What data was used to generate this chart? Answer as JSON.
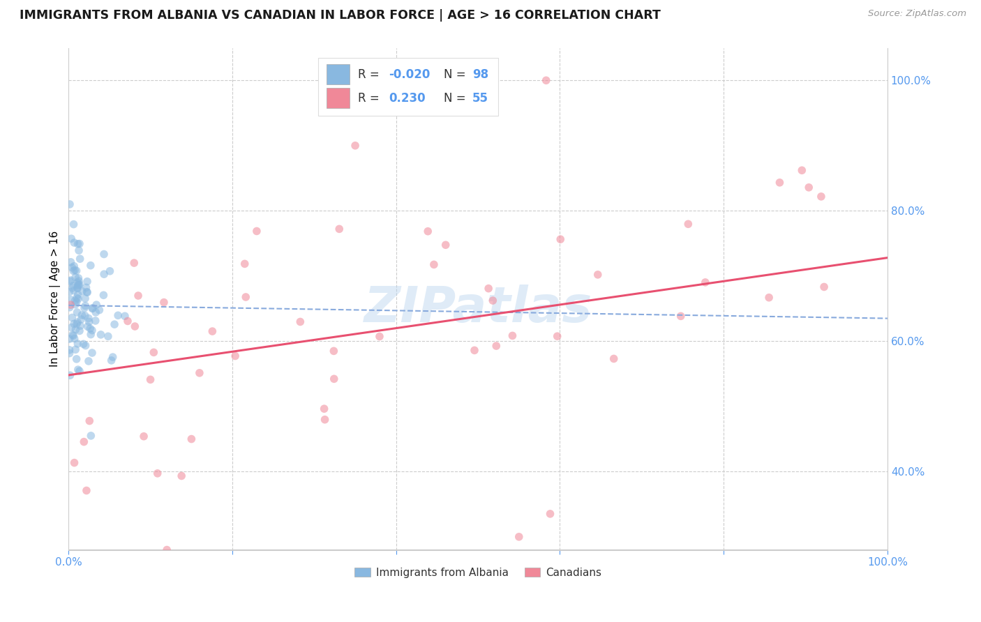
{
  "title": "IMMIGRANTS FROM ALBANIA VS CANADIAN IN LABOR FORCE | AGE > 16 CORRELATION CHART",
  "source": "Source: ZipAtlas.com",
  "ylabel": "In Labor Force | Age > 16",
  "watermark": "ZIPatlas",
  "albania_R": "-0.020",
  "albania_N": "98",
  "canada_R": "0.230",
  "canada_N": "55",
  "xlim": [
    0.0,
    1.0
  ],
  "ylim": [
    0.28,
    1.05
  ],
  "xtick_edge_labels": [
    "0.0%",
    "100.0%"
  ],
  "xtick_inner_vals": [
    0.2,
    0.4,
    0.6,
    0.8
  ],
  "ytick_right_vals": [
    0.4,
    0.6,
    0.8,
    1.0
  ],
  "ytick_right_labels": [
    "40.0%",
    "60.0%",
    "80.0%",
    "100.0%"
  ],
  "albania_line_x": [
    0.0,
    1.0
  ],
  "albania_line_y": [
    0.655,
    0.635
  ],
  "canada_line_x": [
    0.0,
    1.0
  ],
  "canada_line_y": [
    0.548,
    0.728
  ],
  "scatter_alpha": 0.55,
  "scatter_size": 70,
  "albania_color": "#89b8e0",
  "canada_color": "#f08898",
  "albania_line_color": "#88aadd",
  "canada_line_color": "#e85070",
  "grid_color": "#cccccc",
  "axis_color": "#5599ee",
  "background_color": "#ffffff",
  "legend_box_color": "#ffffff",
  "legend_border_color": "#dddddd"
}
